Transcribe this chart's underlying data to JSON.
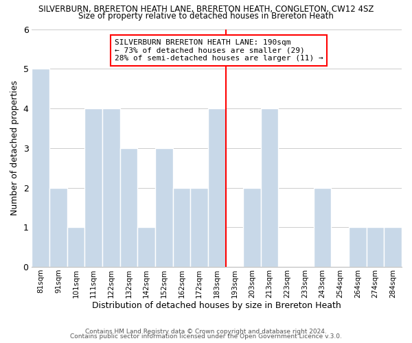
{
  "title_line1": "SILVERBURN, BRERETON HEATH LANE, BRERETON HEATH, CONGLETON, CW12 4SZ",
  "title_line2": "Size of property relative to detached houses in Brereton Heath",
  "xlabel": "Distribution of detached houses by size in Brereton Heath",
  "ylabel": "Number of detached properties",
  "bar_labels": [
    "81sqm",
    "91sqm",
    "101sqm",
    "111sqm",
    "122sqm",
    "132sqm",
    "142sqm",
    "152sqm",
    "162sqm",
    "172sqm",
    "183sqm",
    "193sqm",
    "203sqm",
    "213sqm",
    "223sqm",
    "233sqm",
    "243sqm",
    "254sqm",
    "264sqm",
    "274sqm",
    "284sqm"
  ],
  "bar_values": [
    5,
    2,
    1,
    4,
    4,
    3,
    1,
    3,
    2,
    2,
    4,
    0,
    2,
    4,
    0,
    0,
    2,
    0,
    1,
    1,
    1
  ],
  "bar_color": "#c8d8e8",
  "bar_edge_color": "#ffffff",
  "vline_x_index": 11,
  "vline_color": "red",
  "annotation_text": "SILVERBURN BRERETON HEATH LANE: 190sqm\n← 73% of detached houses are smaller (29)\n28% of semi-detached houses are larger (11) →",
  "annotation_box_color": "white",
  "annotation_box_edge_color": "red",
  "ylim": [
    0,
    6
  ],
  "yticks": [
    0,
    1,
    2,
    3,
    4,
    5,
    6
  ],
  "footnote1": "Contains HM Land Registry data © Crown copyright and database right 2024.",
  "footnote2": "Contains public sector information licensed under the Open Government Licence v.3.0.",
  "background_color": "white",
  "grid_color": "#cccccc",
  "title1_fontsize": 8.5,
  "title2_fontsize": 8.5,
  "xlabel_fontsize": 9,
  "ylabel_fontsize": 9,
  "annotation_fontsize": 8.0,
  "tick_fontsize": 7.5,
  "footnote_fontsize": 6.5
}
